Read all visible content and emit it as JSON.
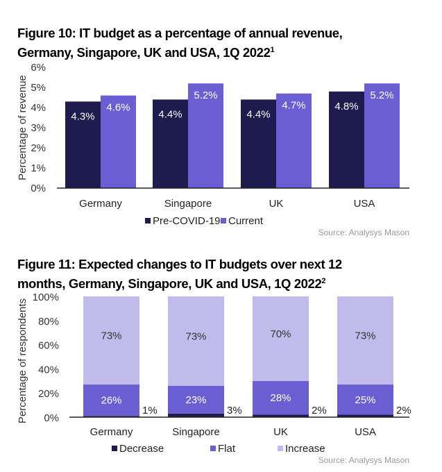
{
  "chart_data": [
    {
      "type": "bar",
      "title": "Figure 10: IT budget as a percentage of annual revenue, Germany, Singapore, UK and USA, 1Q 2022",
      "title_line1": "Figure 10: IT budget as a percentage of annual revenue,",
      "title_line2": "Germany, Singapore, UK and USA, 1Q 2022",
      "title_footnote": "1",
      "ylabel": "Percentage of revenue",
      "ylim": [
        0,
        6
      ],
      "yticks": [
        "0%",
        "1%",
        "2%",
        "3%",
        "4%",
        "5%",
        "6%"
      ],
      "categories": [
        "Germany",
        "Singapore",
        "UK",
        "USA"
      ],
      "series": [
        {
          "name": "Pre-COVID-19",
          "color": "#1e1b4f",
          "values": [
            4.3,
            4.4,
            4.4,
            4.8
          ],
          "labels": [
            "4.3%",
            "4.4%",
            "4.4%",
            "4.8%"
          ]
        },
        {
          "name": "Current",
          "color": "#6a5fd2",
          "values": [
            4.6,
            5.2,
            4.7,
            5.2
          ],
          "labels": [
            "4.6%",
            "5.2%",
            "4.7%",
            "5.2%"
          ]
        }
      ],
      "legend": "bottom",
      "grid": false,
      "source": "Source: Analysys Mason"
    },
    {
      "type": "bar",
      "stacked": true,
      "title": "Figure 11: Expected changes to IT budgets over next 12 months, Germany, Singapore, UK and USA, 1Q 2022",
      "title_line1": "Figure 11: Expected changes to IT budgets over next 12",
      "title_line2": "months, Germany, Singapore, UK and USA, 1Q 2022",
      "title_footnote": "2",
      "ylabel": "Percentage of respondents",
      "ylim": [
        0,
        100
      ],
      "yticks": [
        "0%",
        "20%",
        "40%",
        "60%",
        "80%",
        "100%"
      ],
      "categories": [
        "Germany",
        "Singapore",
        "UK",
        "USA"
      ],
      "series": [
        {
          "name": "Decrease",
          "color": "#1e1b4f",
          "values": [
            1,
            3,
            2,
            2
          ],
          "labels": [
            "1%",
            "3%",
            "2%",
            "2%"
          ]
        },
        {
          "name": "Flat",
          "color": "#6a5fd2",
          "values": [
            26,
            23,
            28,
            25
          ],
          "labels": [
            "26%",
            "23%",
            "28%",
            "25%"
          ]
        },
        {
          "name": "Increase",
          "color": "#c0bbea",
          "values": [
            73,
            73,
            70,
            73
          ],
          "labels": [
            "73%",
            "73%",
            "70%",
            "73%"
          ]
        }
      ],
      "legend": "bottom",
      "grid": false,
      "source": "Source: Analysys Mason"
    }
  ]
}
